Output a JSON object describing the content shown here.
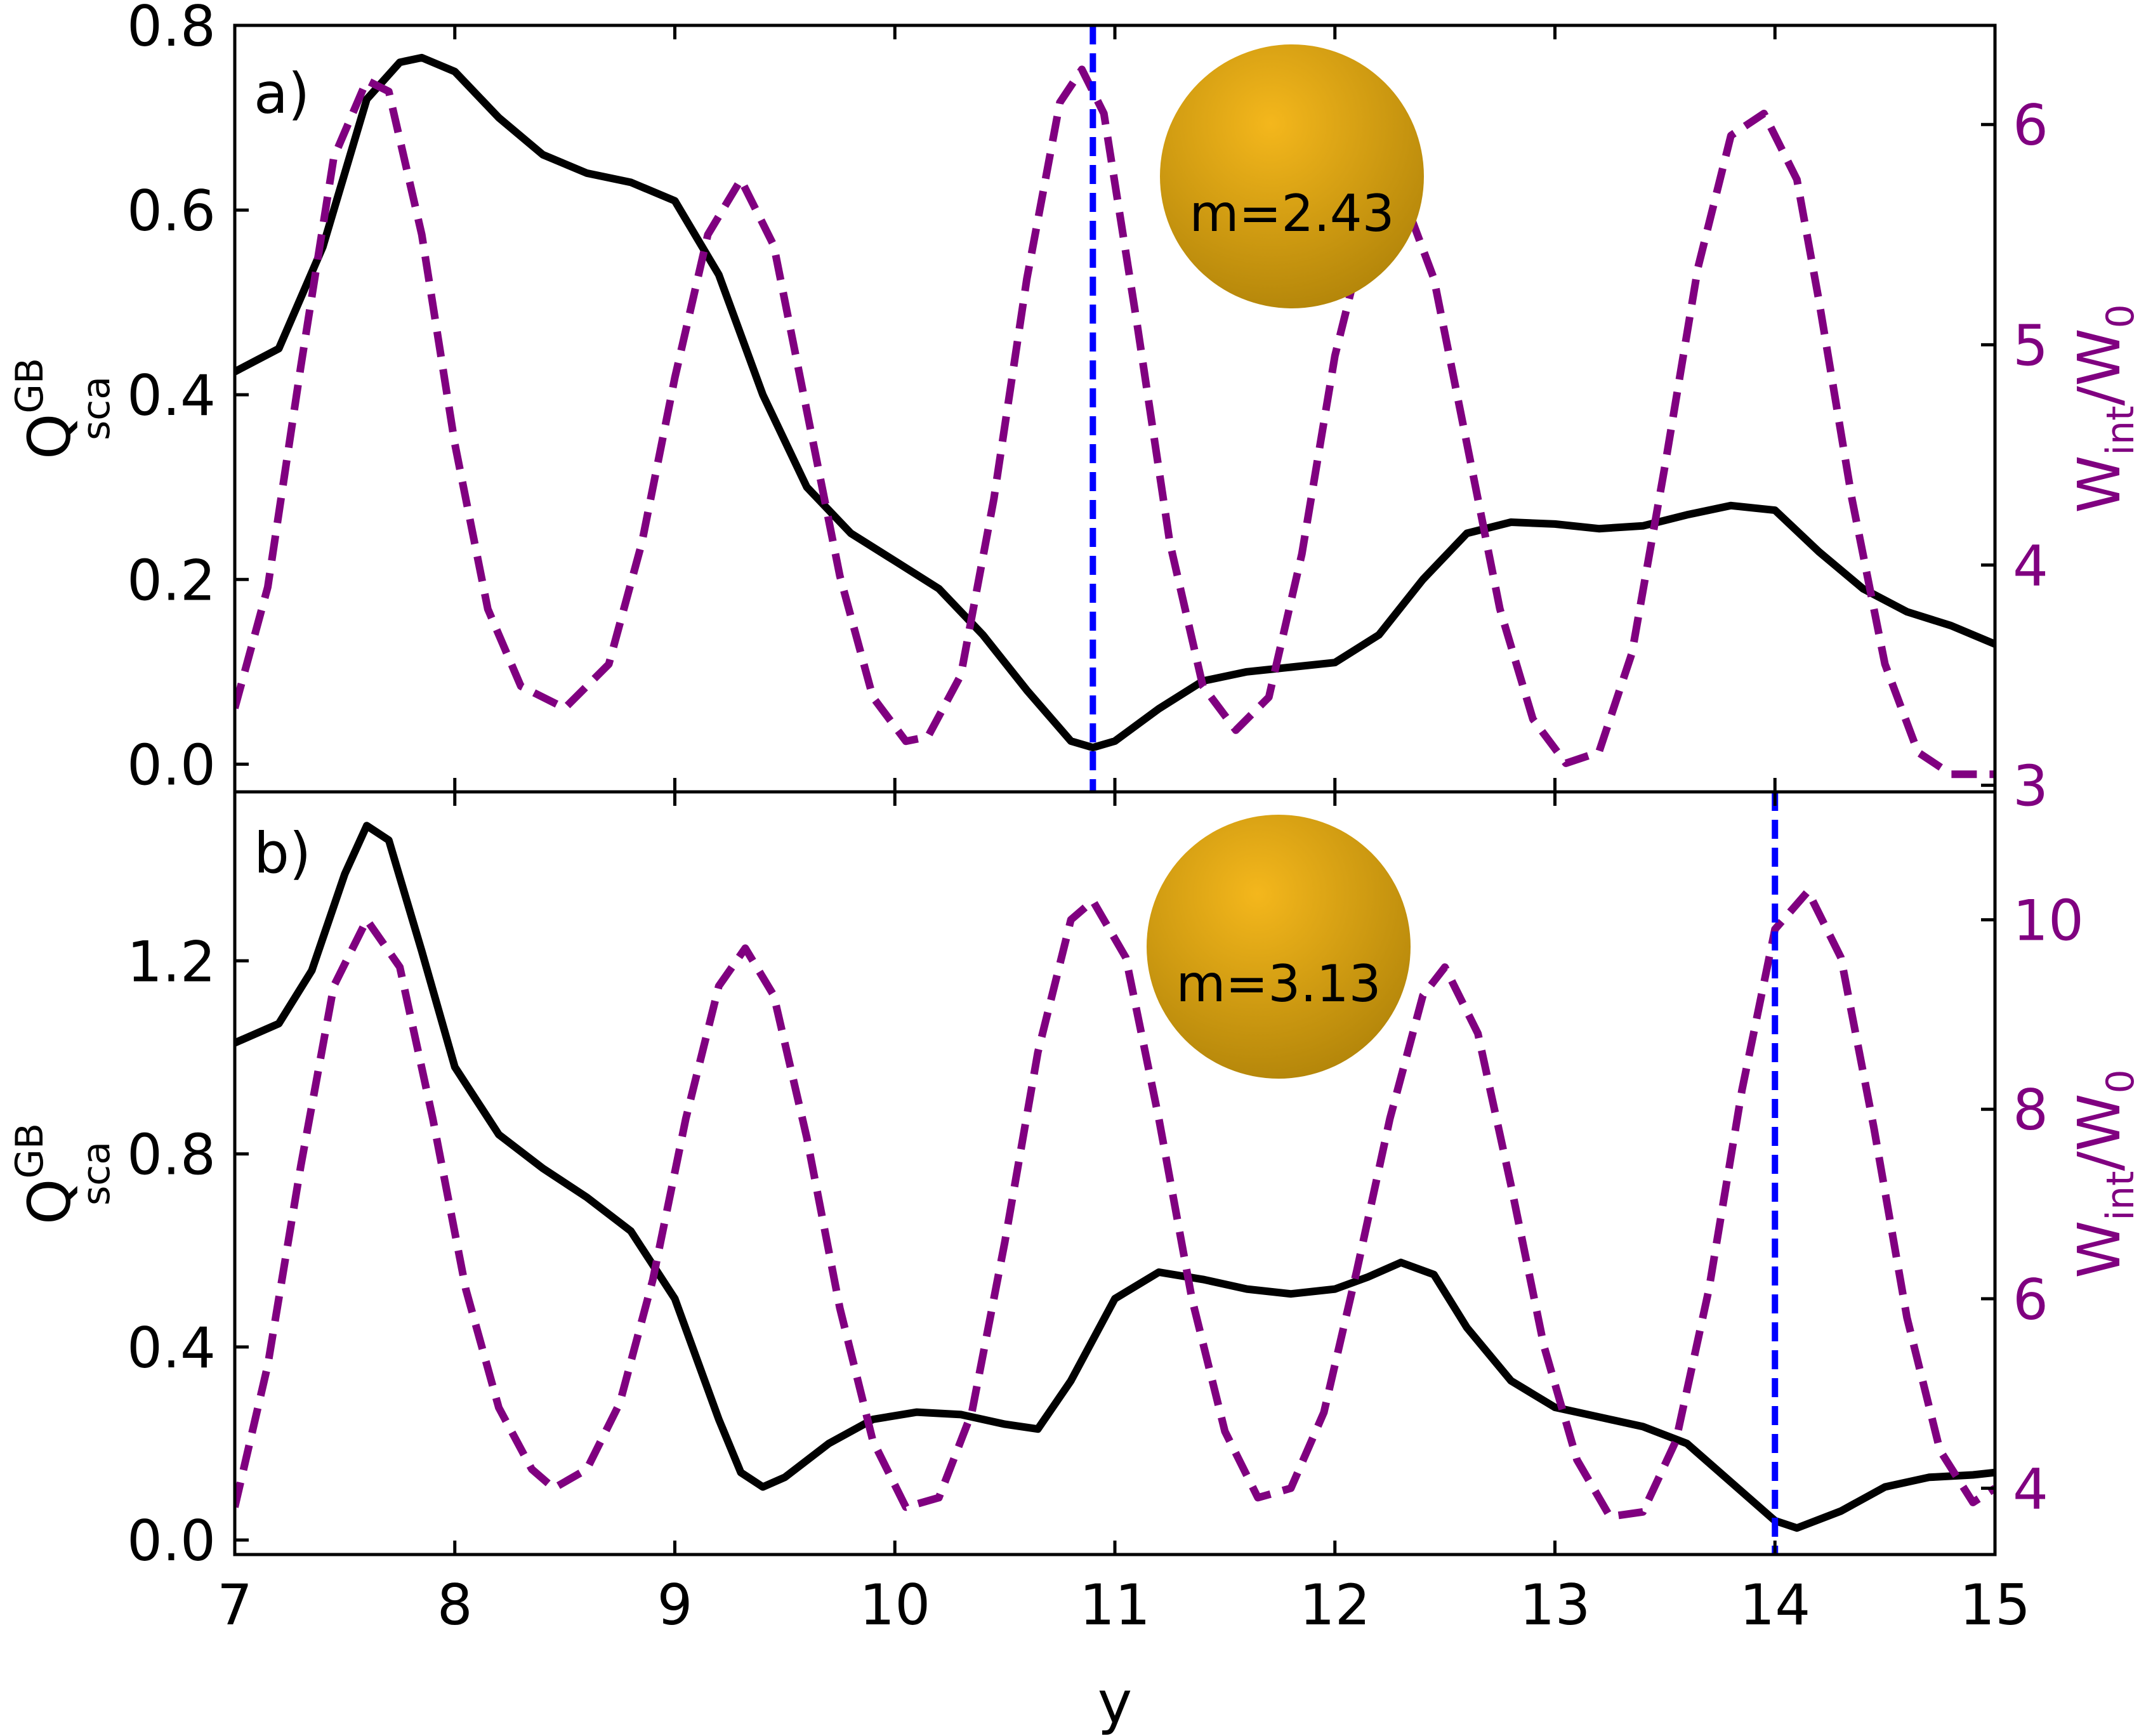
{
  "colors": {
    "q_line": "#000000",
    "w_line": "#800080",
    "marker_line": "#0000ff",
    "sphere_light": "#f4b71c",
    "sphere_dark": "#b4860a"
  },
  "chart_data": [
    {
      "type": "line",
      "panel_label": "a)",
      "sphere_label": "m=2.43",
      "xlabel": "y",
      "xlim": [
        7,
        15
      ],
      "x_ticks": [
        "7",
        "8",
        "9",
        "10",
        "11",
        "12",
        "13",
        "14",
        "15"
      ],
      "left_axis": {
        "label_main": "Q",
        "label_sup": "GB",
        "label_sub": "sca",
        "ylim": [
          -0.03,
          0.8
        ],
        "ticks": [
          "0.0",
          "0.2",
          "0.4",
          "0.6",
          "0.8"
        ],
        "tick_values": [
          0.0,
          0.2,
          0.4,
          0.6,
          0.8
        ]
      },
      "right_axis": {
        "label_main": "W",
        "label_sub1": "int",
        "label_mid": "/W",
        "label_sub2": "0",
        "ylim": [
          2.97,
          6.45
        ],
        "ticks": [
          "3",
          "4",
          "5",
          "6"
        ],
        "tick_values": [
          3,
          4,
          5,
          6
        ]
      },
      "marker_x": 10.9,
      "series": [
        {
          "axis": "left",
          "style": "solid",
          "x": [
            7.0,
            7.2,
            7.4,
            7.6,
            7.75,
            7.85,
            8.0,
            8.2,
            8.4,
            8.6,
            8.8,
            9.0,
            9.2,
            9.4,
            9.6,
            9.8,
            10.0,
            10.2,
            10.4,
            10.6,
            10.8,
            10.9,
            11.0,
            11.2,
            11.4,
            11.6,
            11.8,
            12.0,
            12.2,
            12.4,
            12.6,
            12.8,
            13.0,
            13.2,
            13.4,
            13.6,
            13.8,
            14.0,
            14.2,
            14.4,
            14.6,
            14.8,
            15.0
          ],
          "y": [
            0.425,
            0.45,
            0.56,
            0.72,
            0.76,
            0.765,
            0.75,
            0.7,
            0.66,
            0.64,
            0.63,
            0.61,
            0.53,
            0.4,
            0.3,
            0.25,
            0.22,
            0.19,
            0.14,
            0.08,
            0.025,
            0.018,
            0.025,
            0.06,
            0.09,
            0.1,
            0.105,
            0.11,
            0.14,
            0.2,
            0.25,
            0.262,
            0.26,
            0.255,
            0.258,
            0.27,
            0.28,
            0.275,
            0.23,
            0.19,
            0.165,
            0.15,
            0.13
          ]
        },
        {
          "axis": "right",
          "style": "dashed",
          "x": [
            7.0,
            7.15,
            7.3,
            7.45,
            7.6,
            7.7,
            7.85,
            8.0,
            8.15,
            8.3,
            8.5,
            8.7,
            8.85,
            9.0,
            9.15,
            9.3,
            9.45,
            9.6,
            9.75,
            9.9,
            10.05,
            10.15,
            10.3,
            10.45,
            10.6,
            10.75,
            10.85,
            10.95,
            11.1,
            11.25,
            11.4,
            11.55,
            11.7,
            11.85,
            12.0,
            12.15,
            12.3,
            12.45,
            12.6,
            12.75,
            12.9,
            13.05,
            13.2,
            13.35,
            13.5,
            13.65,
            13.8,
            13.95,
            14.1,
            14.2,
            14.35,
            14.5,
            14.65,
            14.8,
            14.95,
            15.0
          ],
          "y": [
            3.35,
            3.9,
            4.9,
            5.85,
            6.2,
            6.15,
            5.5,
            4.55,
            3.8,
            3.45,
            3.35,
            3.55,
            4.1,
            4.85,
            5.5,
            5.75,
            5.45,
            4.7,
            3.95,
            3.4,
            3.2,
            3.22,
            3.5,
            4.3,
            5.3,
            6.1,
            6.25,
            6.05,
            5.1,
            4.1,
            3.45,
            3.25,
            3.4,
            4.05,
            4.95,
            5.55,
            5.7,
            5.3,
            4.55,
            3.8,
            3.3,
            3.1,
            3.15,
            3.6,
            4.45,
            5.35,
            5.95,
            6.05,
            5.75,
            5.2,
            4.3,
            3.55,
            3.15,
            3.05,
            3.05,
            3.05
          ]
        }
      ]
    },
    {
      "type": "line",
      "panel_label": "b)",
      "sphere_label": "m=3.13",
      "xlabel": "y",
      "xlim": [
        7,
        15
      ],
      "x_ticks": [
        "7",
        "8",
        "9",
        "10",
        "11",
        "12",
        "13",
        "14",
        "15"
      ],
      "left_axis": {
        "label_main": "Q",
        "label_sup": "GB",
        "label_sub": "sca",
        "ylim": [
          -0.03,
          1.55
        ],
        "ticks": [
          "0.0",
          "0.4",
          "0.8",
          "1.2"
        ],
        "tick_values": [
          0.0,
          0.4,
          0.8,
          1.2
        ]
      },
      "right_axis": {
        "label_main": "W",
        "label_sub1": "int",
        "label_mid": "/W",
        "label_sub2": "0",
        "ylim": [
          3.3,
          11.35
        ],
        "ticks": [
          "4",
          "6",
          "8",
          "10"
        ],
        "tick_values": [
          4,
          6,
          8,
          10
        ]
      },
      "marker_x": 14.0,
      "series": [
        {
          "axis": "left",
          "style": "solid",
          "x": [
            7.0,
            7.2,
            7.35,
            7.5,
            7.6,
            7.7,
            7.85,
            8.0,
            8.2,
            8.4,
            8.6,
            8.8,
            9.0,
            9.2,
            9.3,
            9.4,
            9.5,
            9.7,
            9.9,
            10.1,
            10.3,
            10.5,
            10.65,
            10.8,
            11.0,
            11.2,
            11.4,
            11.6,
            11.8,
            12.0,
            12.15,
            12.3,
            12.45,
            12.6,
            12.8,
            13.0,
            13.2,
            13.4,
            13.6,
            13.8,
            14.0,
            14.1,
            14.3,
            14.5,
            14.7,
            14.9,
            15.0
          ],
          "y": [
            1.03,
            1.07,
            1.18,
            1.38,
            1.48,
            1.45,
            1.22,
            0.98,
            0.84,
            0.77,
            0.71,
            0.64,
            0.5,
            0.25,
            0.14,
            0.11,
            0.13,
            0.2,
            0.25,
            0.265,
            0.26,
            0.24,
            0.23,
            0.33,
            0.5,
            0.555,
            0.54,
            0.52,
            0.51,
            0.52,
            0.545,
            0.575,
            0.55,
            0.44,
            0.33,
            0.275,
            0.255,
            0.235,
            0.2,
            0.12,
            0.04,
            0.025,
            0.06,
            0.11,
            0.13,
            0.135,
            0.14
          ]
        },
        {
          "axis": "right",
          "style": "dashed",
          "x": [
            7.0,
            7.15,
            7.3,
            7.45,
            7.6,
            7.75,
            7.9,
            8.05,
            8.2,
            8.35,
            8.45,
            8.6,
            8.75,
            8.9,
            9.05,
            9.2,
            9.32,
            9.45,
            9.6,
            9.75,
            9.9,
            10.05,
            10.2,
            10.35,
            10.5,
            10.65,
            10.8,
            10.9,
            11.05,
            11.2,
            11.35,
            11.5,
            11.65,
            11.8,
            11.95,
            12.1,
            12.25,
            12.4,
            12.5,
            12.65,
            12.8,
            12.95,
            13.1,
            13.25,
            13.4,
            13.55,
            13.7,
            13.85,
            14.0,
            14.15,
            14.3,
            14.45,
            14.6,
            14.75,
            14.9,
            15.0
          ],
          "y": [
            3.8,
            5.3,
            7.4,
            9.3,
            10.0,
            9.5,
            7.9,
            6.1,
            4.85,
            4.2,
            4.0,
            4.2,
            4.9,
            6.2,
            7.9,
            9.3,
            9.7,
            9.2,
            7.7,
            5.9,
            4.5,
            3.8,
            3.9,
            4.8,
            6.6,
            8.6,
            10.0,
            10.2,
            9.6,
            7.9,
            6.0,
            4.6,
            3.9,
            4.0,
            4.8,
            6.3,
            7.9,
            9.2,
            9.5,
            8.8,
            7.2,
            5.5,
            4.3,
            3.7,
            3.75,
            4.5,
            6.1,
            8.2,
            9.9,
            10.3,
            9.6,
            7.8,
            5.8,
            4.4,
            3.85,
            4.0
          ]
        }
      ]
    }
  ]
}
